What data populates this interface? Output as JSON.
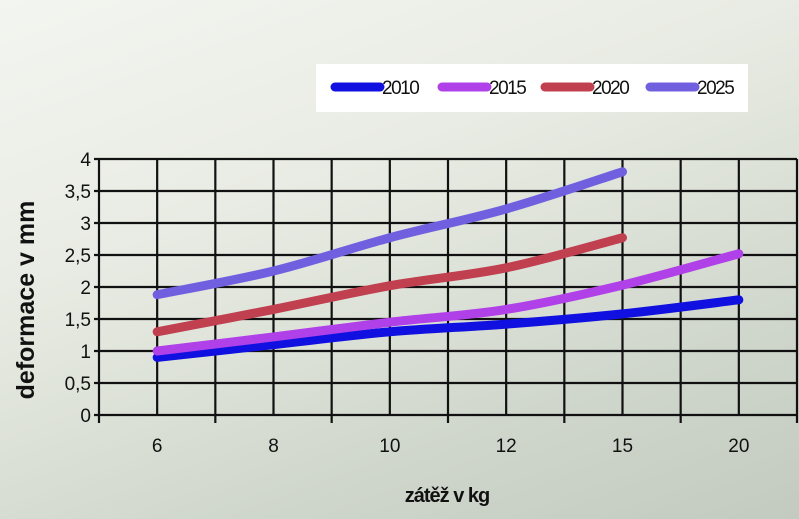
{
  "chart_data": {
    "type": "line",
    "categories": [
      "6",
      "8",
      "10",
      "12",
      "15",
      "20"
    ],
    "series": [
      {
        "name": "2010",
        "color": "#1010e0",
        "values": [
          0.9,
          1.1,
          1.3,
          1.42,
          1.58,
          1.8
        ]
      },
      {
        "name": "2015",
        "color": "#b040e8",
        "values": [
          1.0,
          1.22,
          1.45,
          1.65,
          2.03,
          2.52
        ]
      },
      {
        "name": "2020",
        "color": "#c04050",
        "values": [
          1.3,
          1.65,
          2.02,
          2.3,
          2.77,
          null
        ]
      },
      {
        "name": "2025",
        "color": "#7060e0",
        "values": [
          1.88,
          2.25,
          2.77,
          3.22,
          3.8,
          null
        ]
      }
    ],
    "xlabel": "zátěž v kg",
    "ylabel": "deformace v mm",
    "ylim": [
      0,
      4
    ],
    "yticks": [
      "0",
      "0,5",
      "1",
      "1,5",
      "2",
      "2,5",
      "3",
      "3,5",
      "4"
    ],
    "grid": true,
    "legend_position": "top-right"
  }
}
